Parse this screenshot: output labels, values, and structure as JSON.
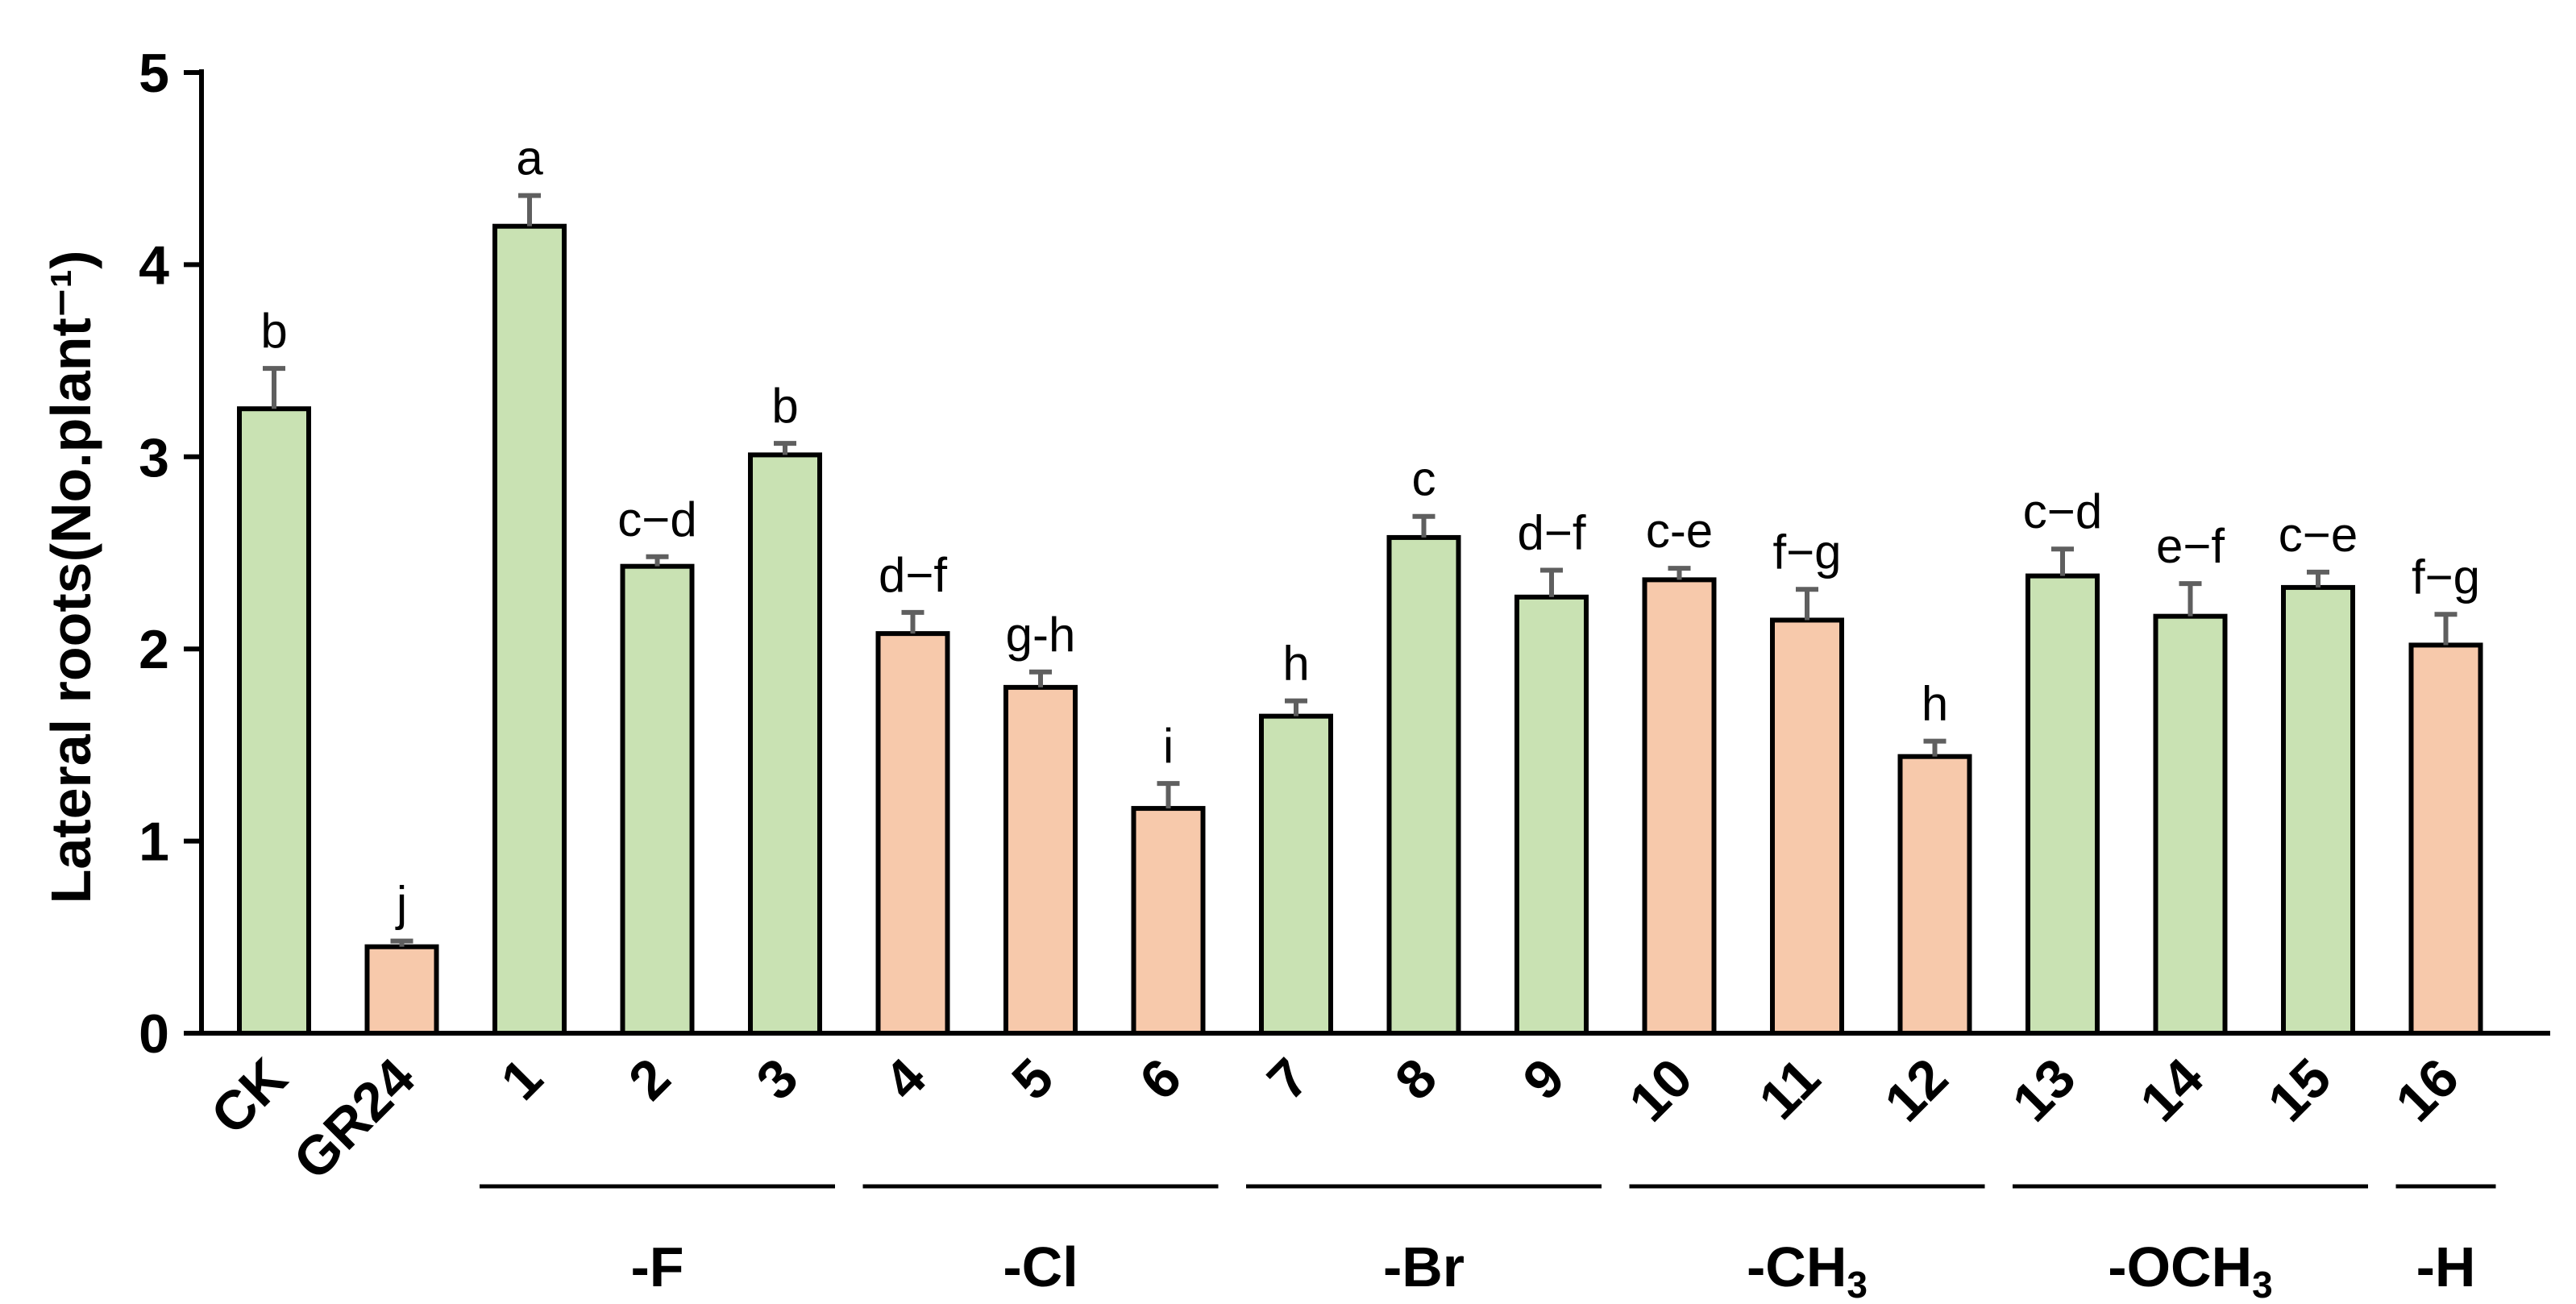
{
  "chart_data": {
    "type": "bar",
    "title": "",
    "xlabel": "",
    "ylabel": "Lateral roots(No.plant⁻¹)",
    "ylim": [
      0,
      5
    ],
    "yticks": [
      "0",
      "1",
      "2",
      "3",
      "4",
      "5"
    ],
    "categories": [
      "CK",
      "GR24",
      "1",
      "2",
      "3",
      "4",
      "5",
      "6",
      "7",
      "8",
      "9",
      "10",
      "11",
      "12",
      "13",
      "14",
      "15",
      "16"
    ],
    "values": [
      3.25,
      0.45,
      4.2,
      2.43,
      3.01,
      2.08,
      1.8,
      1.17,
      1.65,
      2.58,
      2.27,
      2.36,
      2.15,
      1.44,
      2.38,
      2.17,
      2.32,
      2.02
    ],
    "errors": [
      0.21,
      0.03,
      0.16,
      0.05,
      0.06,
      0.11,
      0.08,
      0.13,
      0.08,
      0.11,
      0.14,
      0.06,
      0.16,
      0.08,
      0.14,
      0.17,
      0.08,
      0.16
    ],
    "significance": [
      "b",
      "j",
      "a",
      "c−d",
      "b",
      "d−f",
      "g-h",
      "i",
      "h",
      "c",
      "d−f",
      "c-e",
      "f−g",
      "h",
      "c−d",
      "e−f",
      "c−e",
      "f−g"
    ],
    "bar_colors": [
      "green",
      "orange",
      "green",
      "green",
      "green",
      "orange",
      "orange",
      "orange",
      "green",
      "green",
      "green",
      "orange",
      "orange",
      "orange",
      "green",
      "green",
      "green",
      "orange"
    ],
    "groups": [
      {
        "label": "-F",
        "sub": "",
        "from": 2,
        "to": 4
      },
      {
        "label": "-Cl",
        "sub": "",
        "from": 5,
        "to": 7
      },
      {
        "label": "-Br",
        "sub": "",
        "from": 8,
        "to": 10
      },
      {
        "label": "-CH",
        "sub": "3",
        "from": 11,
        "to": 13
      },
      {
        "label": "-OCH",
        "sub": "3",
        "from": 14,
        "to": 16
      },
      {
        "label": "-H",
        "sub": "",
        "from": 17,
        "to": 17
      }
    ],
    "grid": false,
    "legend": "none"
  },
  "colors": {
    "green": "#c9e2b3",
    "orange": "#f7c9ab",
    "outline": "#000000",
    "error_bar": "#5f5f5f"
  }
}
